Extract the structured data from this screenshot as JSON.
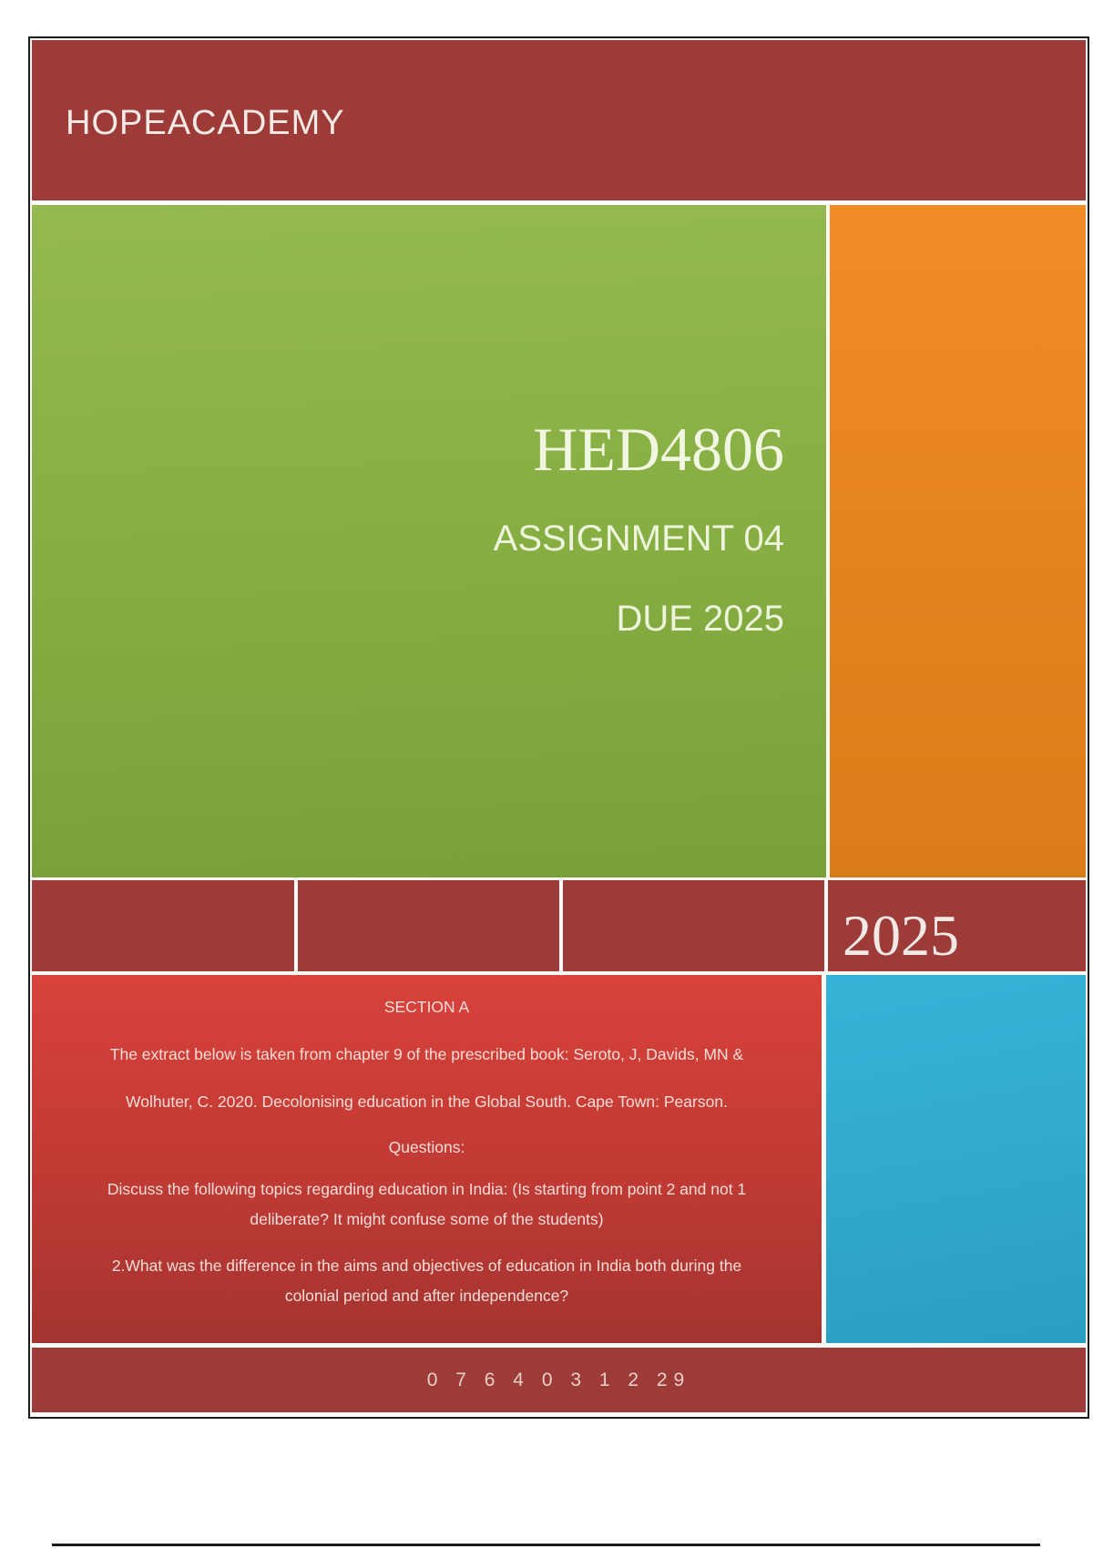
{
  "header": {
    "title": "HOPEACADEMY"
  },
  "hero": {
    "course_code": "HED4806",
    "assignment_label": "ASSIGNMENT 04",
    "due_label": "DUE 2025"
  },
  "year_band": {
    "year": "2025"
  },
  "section": {
    "heading": "SECTION A",
    "paragraphs": [
      {
        "lines": [
          "The extract below is taken from chapter 9 of the prescribed book: Seroto, J, Davids, MN &",
          "Wolhuter, C. 2020. Decolonising education in the Global South. Cape Town: Pearson."
        ]
      },
      {
        "lines": [
          "Questions:"
        ]
      },
      {
        "lines": [
          "Discuss the following topics regarding education in India: (Is starting from point 2 and not 1",
          "deliberate? It might confuse some of the students)"
        ]
      },
      {
        "lines": [
          "2.What was the difference in the aims and objectives of education in India both during the",
          "colonial period and after independence?"
        ]
      }
    ]
  },
  "footer": {
    "phone": "0 7 6 4 0 3 1 2 29"
  },
  "colors": {
    "maroon": "#9c3b37",
    "border": "#1b1b1b",
    "green_top": "#93b94f",
    "green_bottom": "#78a039",
    "orange_top": "#f18c26",
    "orange_bottom": "#da7c18",
    "red_top": "#d8423b",
    "red_bottom": "#a33430",
    "blue_top": "#36b3d8",
    "blue_bottom": "#2d9ec3"
  }
}
